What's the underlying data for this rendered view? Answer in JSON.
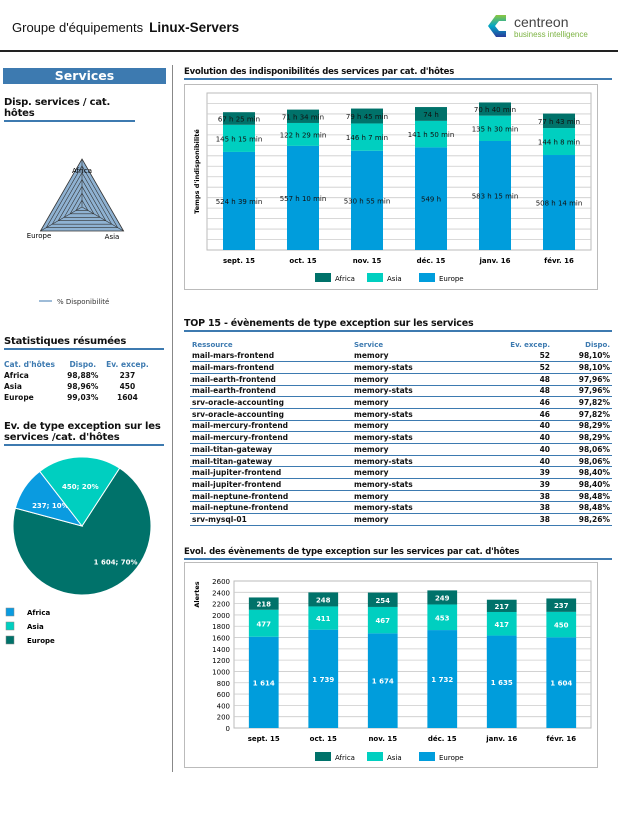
{
  "header": {
    "label": "Groupe d'équipements",
    "group": "Linux-Servers",
    "logo_name": "centreon",
    "logo_sub": "business intelligence"
  },
  "left": {
    "banner": "Services",
    "radar": {
      "title": "Disp. services / cat. hôtes",
      "axes": [
        "Africa",
        "Asia",
        "Europe"
      ],
      "values": [
        98.88,
        98.96,
        99.03
      ],
      "legend": "% Disponibilité",
      "fill": "#8fb2d2"
    },
    "stats": {
      "title": "Statistiques résumées",
      "headers": [
        "Cat. d'hôtes",
        "Dispo.",
        "Ev. excep."
      ],
      "rows": [
        [
          "Africa",
          "98,88%",
          "237"
        ],
        [
          "Asia",
          "98,96%",
          "450"
        ],
        [
          "Europe",
          "99,03%",
          "1604"
        ]
      ]
    },
    "pie": {
      "title": "Ev. de type exception sur les services /cat. d'hôtes",
      "slices": [
        {
          "name": "Africa",
          "value": 237,
          "label": "237; 10%",
          "color": "#0a9be0"
        },
        {
          "name": "Asia",
          "value": 450,
          "label": "450; 20%",
          "color": "#00cfc0"
        },
        {
          "name": "Europe",
          "value": 1604,
          "label": "1 604; 70%",
          "color": "#00726a"
        }
      ]
    }
  },
  "chart_data": [
    {
      "type": "bar",
      "stacked": true,
      "title": "Evolution des indisponibilités des services par cat. d'hôtes",
      "ylabel": "Temps d'indisponibilité",
      "grid": true,
      "legend": "bottom",
      "categories": [
        "sept. 15",
        "oct. 15",
        "nov. 15",
        "déc. 15",
        "janv. 16",
        "févr. 16"
      ],
      "series": [
        {
          "name": "Europe",
          "color": "#009ddc",
          "values": [
            524.65,
            557.17,
            530.92,
            549,
            583.25,
            508.23
          ],
          "labels": [
            "524 h 39 min",
            "557 h 10 min",
            "530 h 55 min",
            "549 h",
            "583 h 15 min",
            "508 h 14 min"
          ]
        },
        {
          "name": "Asia",
          "color": "#00cfc0",
          "values": [
            145.25,
            122.48,
            146.12,
            141.83,
            135.5,
            144.13
          ],
          "labels": [
            "145 h 15 min",
            "122 h 29 min",
            "146 h 7 min",
            "141 h 50 min",
            "135 h 30 min",
            "144 h 8 min"
          ]
        },
        {
          "name": "Africa",
          "color": "#00726a",
          "values": [
            67.42,
            71.57,
            79.75,
            74,
            70.67,
            77.72
          ],
          "labels": [
            "67 h 25 min",
            "71 h 34 min",
            "79 h 45 min",
            "74 h",
            "70 h 40 min",
            "77 h 43 min"
          ]
        }
      ],
      "ylim": [
        0,
        840
      ]
    },
    {
      "type": "bar",
      "stacked": true,
      "title": "Evol. des évènements de type exception sur les services par cat. d'hôtes",
      "ylabel": "Alertes",
      "grid": true,
      "legend": "bottom",
      "categories": [
        "sept. 15",
        "oct. 15",
        "nov. 15",
        "déc. 15",
        "janv. 16",
        "févr. 16"
      ],
      "yticks": [
        "0",
        "200",
        "400",
        "600",
        "800",
        "1000",
        "1200",
        "1400",
        "1600",
        "1800",
        "2000",
        "2200",
        "2400",
        "2600"
      ],
      "series": [
        {
          "name": "Europe",
          "color": "#009ddc",
          "values": [
            1614,
            1739,
            1674,
            1732,
            1635,
            1604
          ],
          "labels": [
            "1 614",
            "1 739",
            "1 674",
            "1 732",
            "1 635",
            "1 604"
          ]
        },
        {
          "name": "Asia",
          "color": "#00cfc0",
          "values": [
            477,
            411,
            467,
            453,
            417,
            450
          ],
          "labels": [
            "477",
            "411",
            "467",
            "453",
            "417",
            "450"
          ]
        },
        {
          "name": "Africa",
          "color": "#00726a",
          "values": [
            218,
            248,
            254,
            249,
            217,
            237
          ],
          "labels": [
            "218",
            "248",
            "254",
            "249",
            "217",
            "237"
          ]
        }
      ],
      "ylim": [
        0,
        2600
      ]
    }
  ],
  "top15": {
    "title": "TOP 15 - évènements de type exception sur les services",
    "headers": [
      "Ressource",
      "Service",
      "Ev. excep.",
      "Dispo."
    ],
    "rows": [
      [
        "mail-mars-frontend",
        "memory",
        "52",
        "98,10%"
      ],
      [
        "mail-mars-frontend",
        "memory-stats",
        "52",
        "98,10%"
      ],
      [
        "mail-earth-frontend",
        "memory",
        "48",
        "97,96%"
      ],
      [
        "mail-earth-frontend",
        "memory-stats",
        "48",
        "97,96%"
      ],
      [
        "srv-oracle-accounting",
        "memory",
        "46",
        "97,82%"
      ],
      [
        "srv-oracle-accounting",
        "memory-stats",
        "46",
        "97,82%"
      ],
      [
        "mail-mercury-frontend",
        "memory",
        "40",
        "98,29%"
      ],
      [
        "mail-mercury-frontend",
        "memory-stats",
        "40",
        "98,29%"
      ],
      [
        "mail-titan-gateway",
        "memory",
        "40",
        "98,06%"
      ],
      [
        "mail-titan-gateway",
        "memory-stats",
        "40",
        "98,06%"
      ],
      [
        "mail-jupiter-frontend",
        "memory",
        "39",
        "98,40%"
      ],
      [
        "mail-jupiter-frontend",
        "memory-stats",
        "39",
        "98,40%"
      ],
      [
        "mail-neptune-frontend",
        "memory",
        "38",
        "98,48%"
      ],
      [
        "mail-neptune-frontend",
        "memory-stats",
        "38",
        "98,48%"
      ],
      [
        "srv-mysql-01",
        "memory",
        "38",
        "98,26%"
      ]
    ]
  }
}
